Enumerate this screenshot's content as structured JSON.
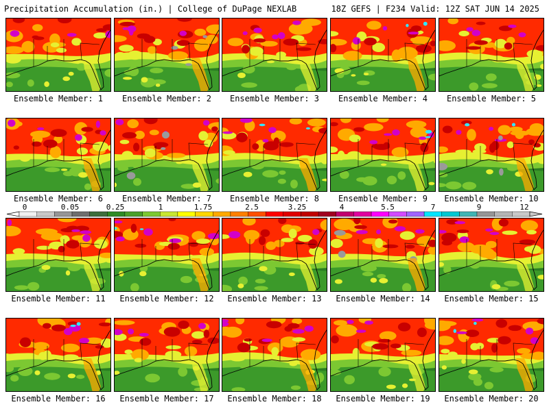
{
  "header": {
    "left_title": "Precipitation Accumulation (in.) | College of DuPage NEXLAB",
    "right_title": "18Z GEFS | F234 Valid: 12Z SAT JUN 14 2025"
  },
  "panels": [
    {
      "label": "Ensemble Member: 1"
    },
    {
      "label": "Ensemble Member: 2"
    },
    {
      "label": "Ensemble Member: 3"
    },
    {
      "label": "Ensemble Member: 4"
    },
    {
      "label": "Ensemble Member: 5"
    },
    {
      "label": "Ensemble Member: 6"
    },
    {
      "label": "Ensemble Member: 7"
    },
    {
      "label": "Ensemble Member: 8"
    },
    {
      "label": "Ensemble Member: 9"
    },
    {
      "label": "Ensemble Member: 10"
    },
    {
      "label": "Ensemble Member: 11"
    },
    {
      "label": "Ensemble Member: 12"
    },
    {
      "label": "Ensemble Member: 13"
    },
    {
      "label": "Ensemble Member: 14"
    },
    {
      "label": "Ensemble Member: 15"
    },
    {
      "label": "Ensemble Member: 16"
    },
    {
      "label": "Ensemble Member: 17"
    },
    {
      "label": "Ensemble Member: 18"
    },
    {
      "label": "Ensemble Member: 19"
    },
    {
      "label": "Ensemble Member: 20"
    }
  ],
  "colorbar": {
    "tick_labels": [
      "0",
      "0.05",
      "0.25",
      "1",
      "1.75",
      "2.5",
      "3.25",
      "4",
      "5.5",
      "7",
      "9",
      "12"
    ],
    "colors": [
      "#f0f0f0",
      "#c8c8c8",
      "#969696",
      "#6e6e6e",
      "#3c6e3c",
      "#2e8b25",
      "#4aa02a",
      "#7cc832",
      "#c8e632",
      "#ffff00",
      "#ffd700",
      "#ffaa00",
      "#ff8000",
      "#ff5000",
      "#ff0000",
      "#e00000",
      "#c00000",
      "#a00020",
      "#c0006e",
      "#e000a0",
      "#ff00ff",
      "#d24bff",
      "#a064ff",
      "#00e6ff",
      "#00c8d2",
      "#40b4b4",
      "#969696",
      "#b4b4b4",
      "#c8c8c8"
    ]
  },
  "palette": {
    "green_dark": "#2a7d22",
    "green": "#3c9a2a",
    "green_light": "#7cc832",
    "yellow": "#e6f032",
    "orange": "#ffaa00",
    "red": "#ff2a00",
    "dark_red": "#c80000",
    "magenta": "#d200c8",
    "cyan": "#32e6ff",
    "gray": "#9a9a9a"
  }
}
